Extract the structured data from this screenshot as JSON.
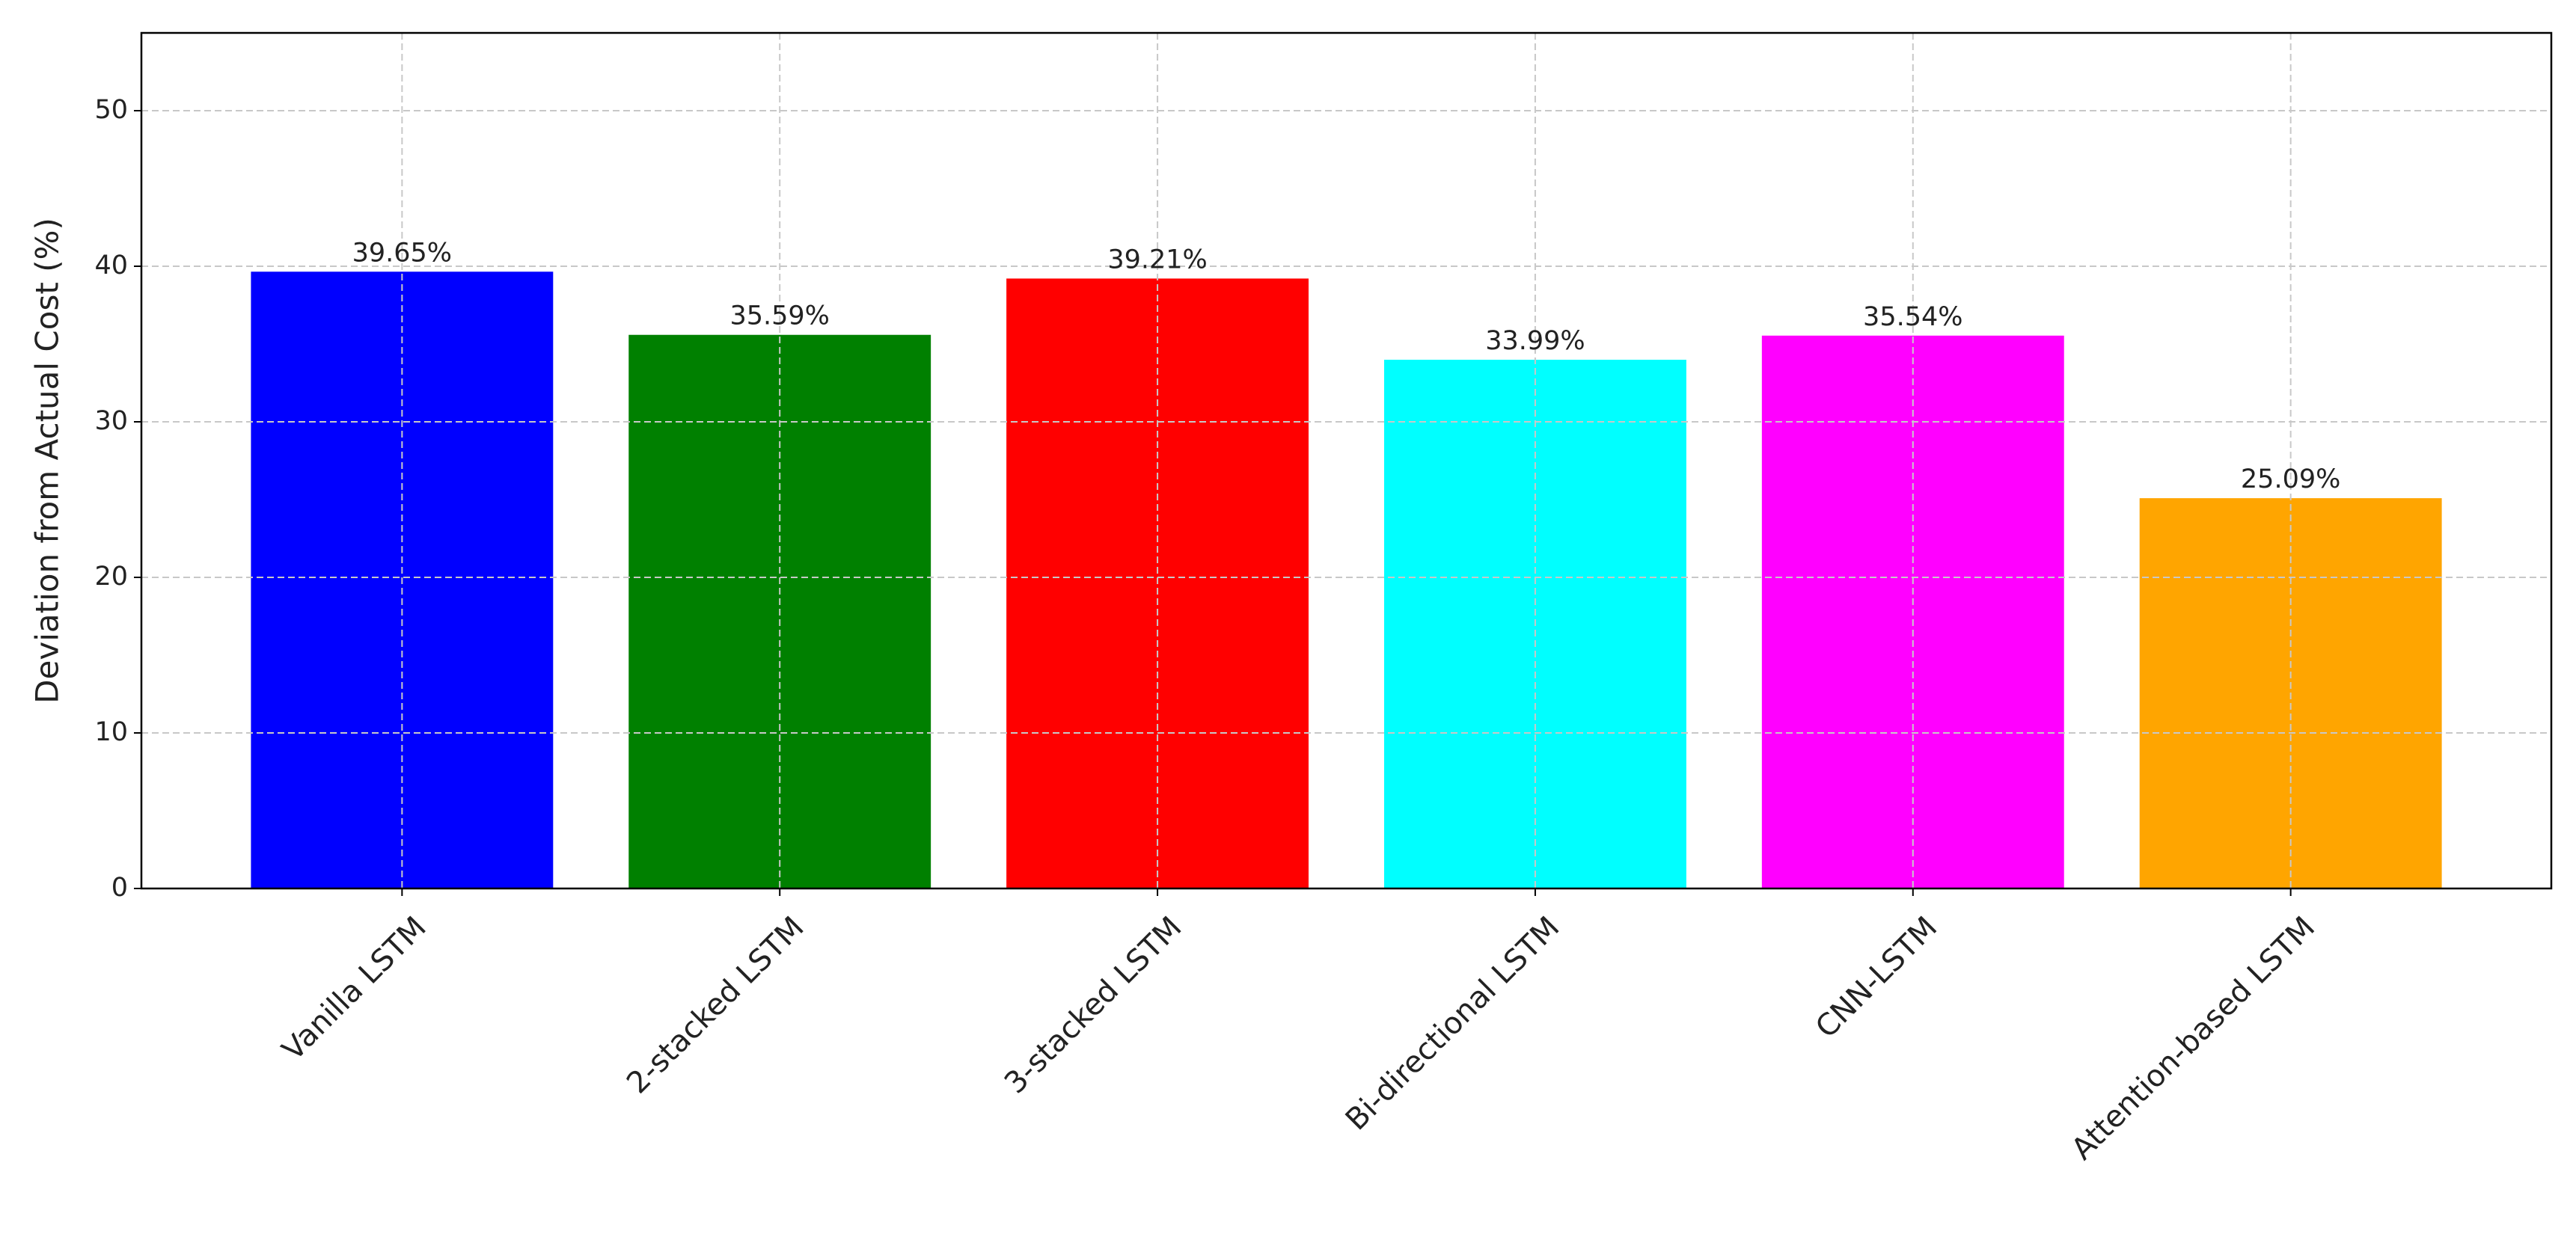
{
  "chart_data": {
    "type": "bar",
    "y_label": "Deviation from Actual Cost (%)",
    "categories": [
      "Vanilla LSTM",
      "2-stacked LSTM",
      "3-stacked LSTM",
      "Bi-directional LSTM",
      "CNN-LSTM",
      "Attention-based LSTM"
    ],
    "values": [
      39.65,
      35.59,
      39.21,
      33.99,
      35.54,
      25.09
    ],
    "value_labels": [
      "39.65%",
      "35.59%",
      "39.21%",
      "33.99%",
      "35.54%",
      "25.09%"
    ],
    "colors": [
      "#0000ff",
      "#008000",
      "#ff0000",
      "#00ffff",
      "#ff00ff",
      "#ffa500"
    ],
    "ylim": [
      0,
      55
    ],
    "yticks": [
      0,
      10,
      20,
      30,
      40,
      50
    ],
    "grid": true
  }
}
